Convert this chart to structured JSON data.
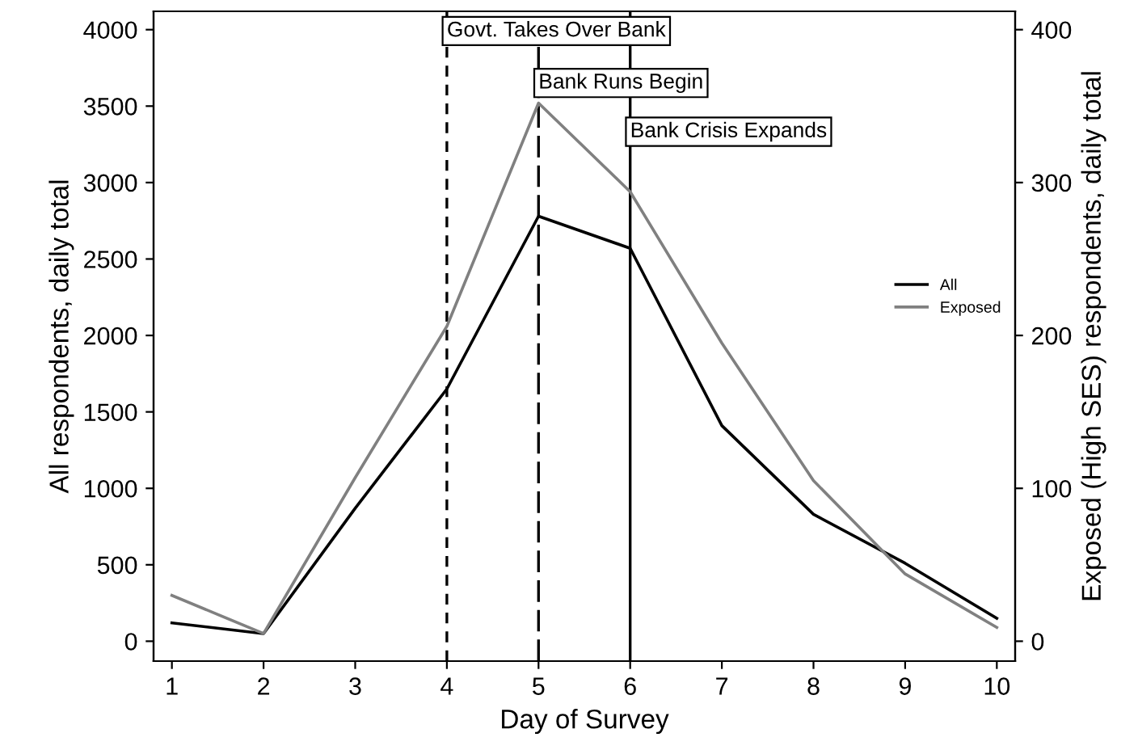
{
  "chart_data": {
    "type": "line",
    "xlabel": "Day of Survey",
    "ylabel": "All respondents, daily total",
    "y2label": "Exposed (High SES) respondents, daily total",
    "x": [
      1,
      2,
      3,
      4,
      5,
      6,
      7,
      8,
      9,
      10
    ],
    "series": [
      {
        "name": "All",
        "color": "#000000",
        "values": [
          120,
          50,
          870,
          1650,
          2780,
          2570,
          1410,
          830,
          510,
          150
        ]
      },
      {
        "name": "Exposed",
        "color": "#808080",
        "axis": "y2",
        "values": [
          30,
          5,
          107,
          206,
          352,
          294,
          195,
          105,
          44,
          9
        ]
      }
    ],
    "xlim": [
      0.8,
      10.2
    ],
    "xticks": [
      1,
      2,
      3,
      4,
      5,
      6,
      7,
      8,
      9,
      10
    ],
    "ylim": [
      -130,
      4120
    ],
    "yticks": [
      0,
      500,
      1000,
      1500,
      2000,
      2500,
      3000,
      3500,
      4000
    ],
    "y2lim": [
      -13,
      412
    ],
    "y2ticks": [
      0,
      100,
      200,
      300,
      400
    ],
    "ref_lines": [
      {
        "axis": "x",
        "value": 4,
        "label": "Govt. Takes Over Bank",
        "line_style": "dashed",
        "color": "#000000"
      },
      {
        "axis": "x",
        "value": 5,
        "label": "Bank Runs Begin",
        "line_style": "longdash",
        "color": "#000000"
      },
      {
        "axis": "x",
        "value": 6,
        "label": "Bank Crisis Expands",
        "line_style": "solid",
        "color": "#000000"
      }
    ],
    "grid": false,
    "legend": "right",
    "line_style": "solid",
    "marker": "none"
  }
}
